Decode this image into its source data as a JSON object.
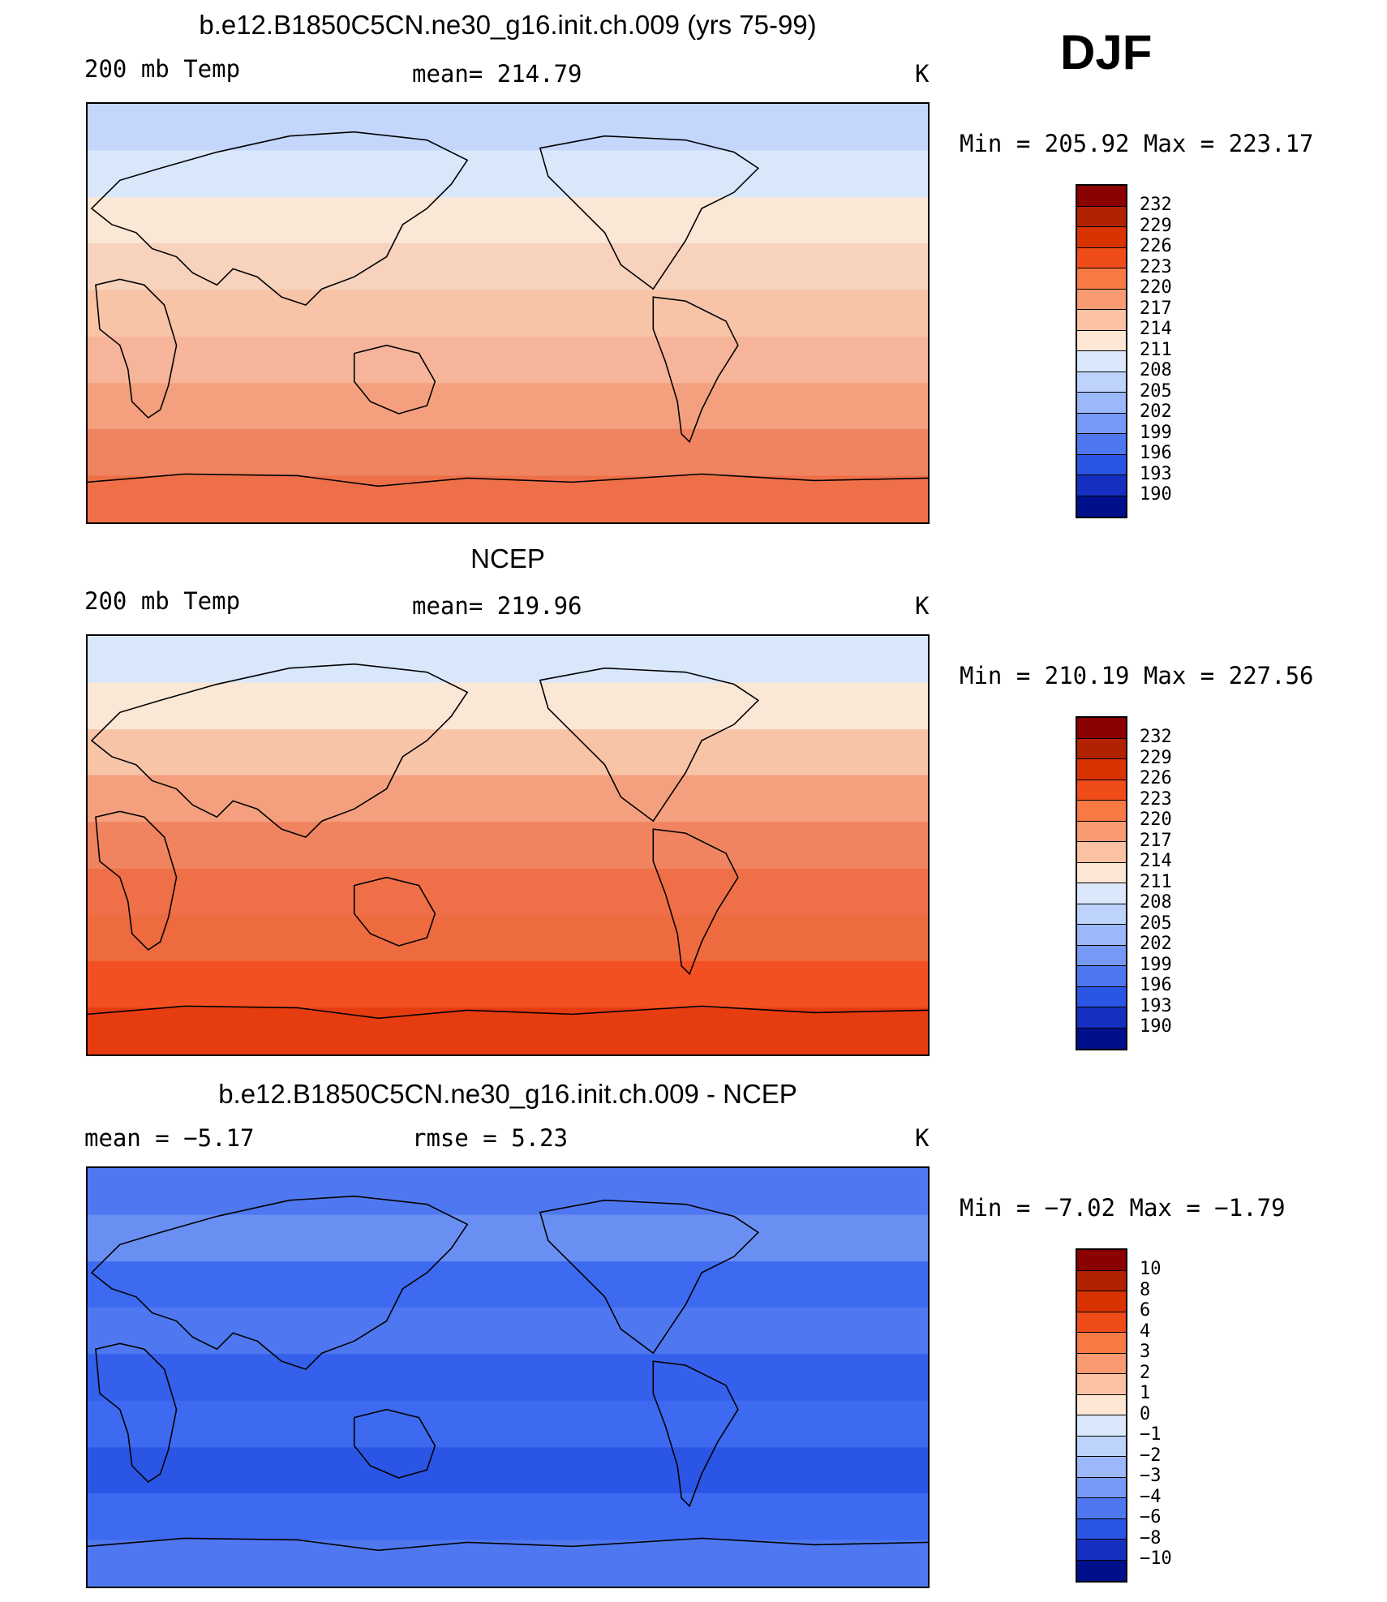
{
  "season": "DJF",
  "panels": [
    {
      "title": "b.e12.B1850C5CN.ne30_g16.init.ch.009 (yrs 75-99)",
      "left_label": "200 mb Temp",
      "center_label": "mean= 214.79",
      "units": "K",
      "minmax": "Min = 205.92 Max = 223.17",
      "band_colors": [
        "#c4d6fb",
        "#d9e7fb",
        "#fbe7d6",
        "#f7d2bc",
        "#f7c4a8",
        "#f6b59a",
        "#f4a07e",
        "#f08460",
        "#ef7048"
      ],
      "colorbar": {
        "labels": [
          "232",
          "229",
          "226",
          "223",
          "220",
          "217",
          "214",
          "211",
          "208",
          "205",
          "202",
          "199",
          "196",
          "193",
          "190"
        ],
        "colors": [
          "#8b0000",
          "#b22200",
          "#d83300",
          "#f04c1a",
          "#f77a44",
          "#f99a70",
          "#fcc2a4",
          "#fde6d4",
          "#dbe8fb",
          "#bed3fb",
          "#9bb8fa",
          "#7699f7",
          "#4f78f0",
          "#2b55e4",
          "#1530c0",
          "#00108a"
        ]
      }
    },
    {
      "title": "NCEP",
      "left_label": "200 mb Temp",
      "center_label": "mean= 219.96",
      "units": "K",
      "minmax": "Min = 210.19 Max = 227.56",
      "band_colors": [
        "#d9e7fb",
        "#fbe7d6",
        "#f7c4a8",
        "#f4a07e",
        "#f08460",
        "#ef7048",
        "#ee6b40",
        "#f25022",
        "#e53c10"
      ],
      "colorbar": {
        "labels": [
          "232",
          "229",
          "226",
          "223",
          "220",
          "217",
          "214",
          "211",
          "208",
          "205",
          "202",
          "199",
          "196",
          "193",
          "190"
        ],
        "colors": [
          "#8b0000",
          "#b22200",
          "#d83300",
          "#f04c1a",
          "#f77a44",
          "#f99a70",
          "#fcc2a4",
          "#fde6d4",
          "#dbe8fb",
          "#bed3fb",
          "#9bb8fa",
          "#7699f7",
          "#4f78f0",
          "#2b55e4",
          "#1530c0",
          "#00108a"
        ]
      }
    },
    {
      "title": "b.e12.B1850C5CN.ne30_g16.init.ch.009 - NCEP",
      "left_label": "mean =  −5.17",
      "center_label": "rmse =   5.23",
      "units": "K",
      "minmax": "Min =  −7.02 Max =  −1.79",
      "band_colors": [
        "#4f78f0",
        "#6a8ff3",
        "#3d6af0",
        "#4f78f0",
        "#3560ec",
        "#3d6af0",
        "#2b55e4",
        "#3d6af0",
        "#4f78f0"
      ],
      "colorbar": {
        "labels": [
          "10",
          "8",
          "6",
          "4",
          "3",
          "2",
          "1",
          "0",
          "−1",
          "−2",
          "−3",
          "−4",
          "−6",
          "−8",
          "−10"
        ],
        "colors": [
          "#8b0000",
          "#b22200",
          "#d83300",
          "#f04c1a",
          "#f77a44",
          "#f99a70",
          "#fcc2a4",
          "#fde6d4",
          "#dbe8fb",
          "#bed3fb",
          "#9bb8fa",
          "#7699f7",
          "#4f78f0",
          "#2b55e4",
          "#1530c0",
          "#00108a"
        ]
      }
    }
  ]
}
